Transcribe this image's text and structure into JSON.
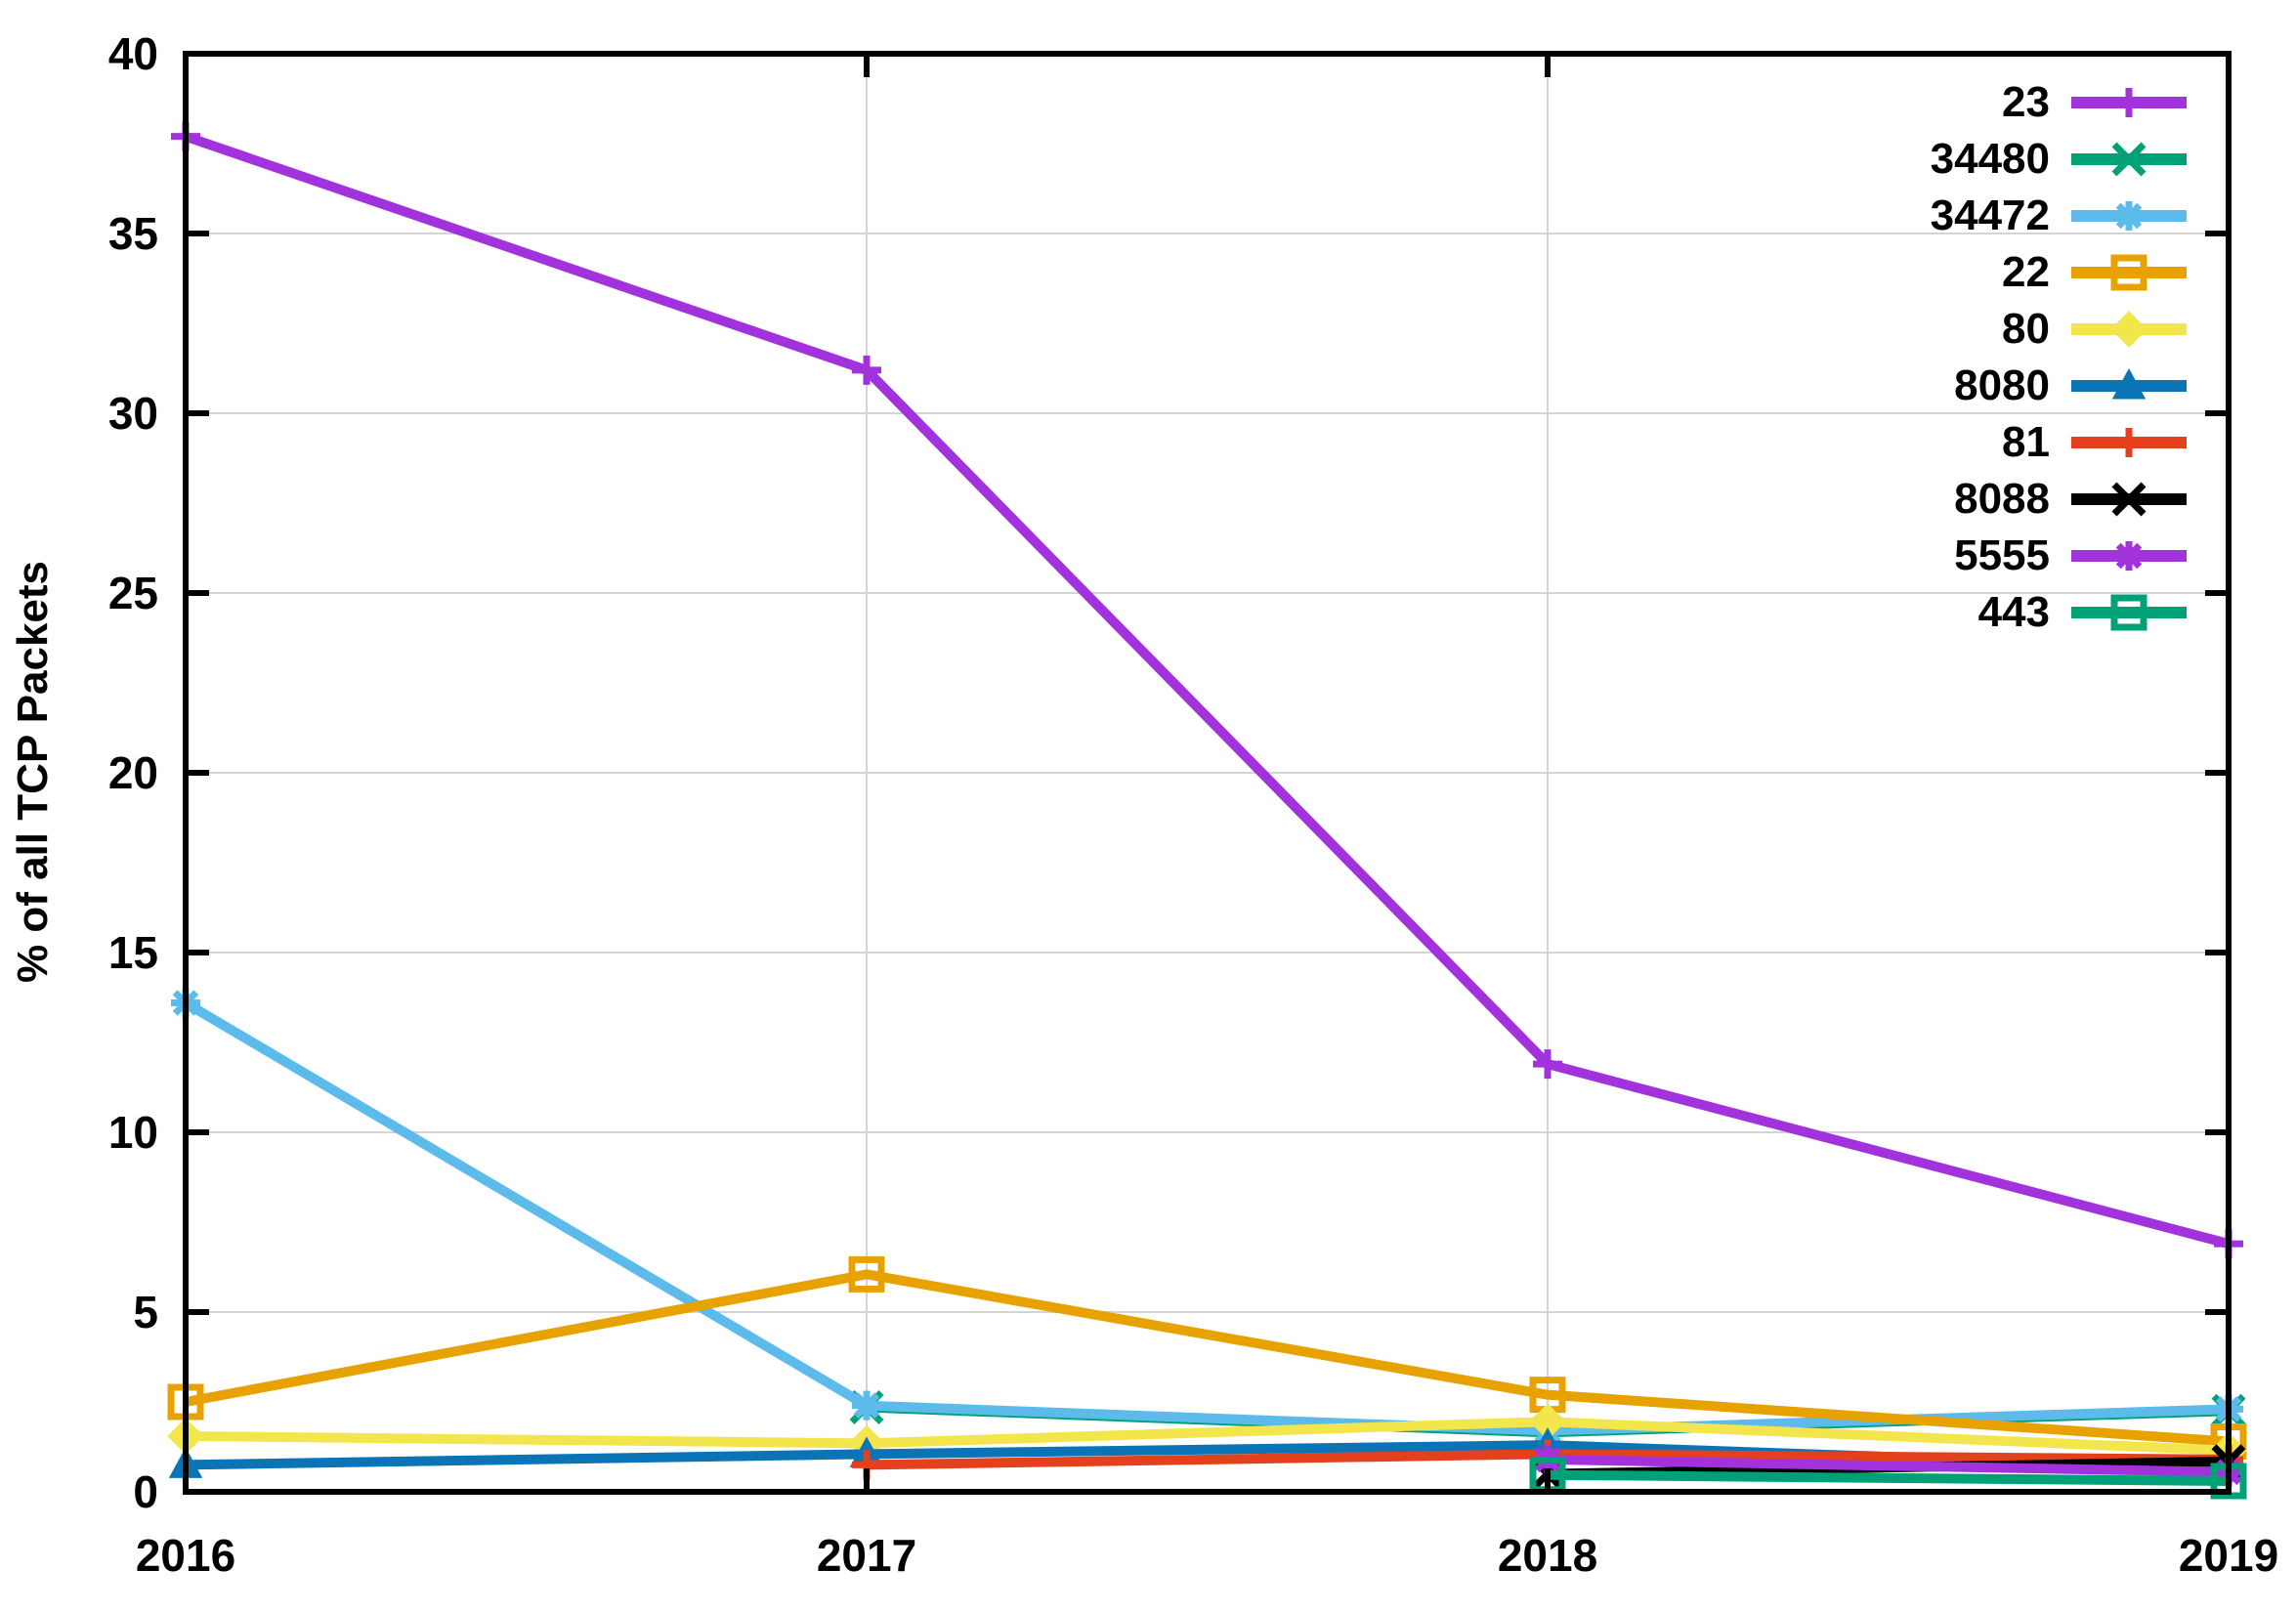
{
  "chart_data": {
    "type": "line",
    "title": "",
    "xlabel": "",
    "ylabel": "% of all TCP Packets",
    "x": [
      2016,
      2017,
      2018,
      2019
    ],
    "xtick_labels": [
      "2016",
      "2017",
      "2018",
      "2019"
    ],
    "ylim": [
      0,
      40
    ],
    "yticks": [
      0,
      5,
      10,
      15,
      20,
      25,
      30,
      35,
      40
    ],
    "grid": true,
    "legend_position": "top-right",
    "series": [
      {
        "name": "23",
        "color": "#a233dc",
        "marker": "plus",
        "values": [
          37.7,
          31.2,
          11.9,
          6.9
        ]
      },
      {
        "name": "34480",
        "color": "#00a176",
        "marker": "cross",
        "values": [
          null,
          2.35,
          1.65,
          2.25
        ]
      },
      {
        "name": "34472",
        "color": "#5cbbea",
        "marker": "asterisk",
        "values": [
          13.6,
          2.4,
          1.7,
          2.3
        ]
      },
      {
        "name": "22",
        "color": "#e8a200",
        "marker": "square-open",
        "values": [
          2.5,
          6.05,
          2.7,
          1.4
        ]
      },
      {
        "name": "80",
        "color": "#f2e64c",
        "marker": "diamond",
        "values": [
          1.55,
          1.35,
          1.95,
          1.15
        ]
      },
      {
        "name": "8080",
        "color": "#0a74b6",
        "marker": "triangle",
        "values": [
          0.75,
          1.05,
          1.3,
          0.65
        ]
      },
      {
        "name": "81",
        "color": "#e5401d",
        "marker": "plus",
        "values": [
          null,
          0.75,
          1.05,
          0.9
        ]
      },
      {
        "name": "8088",
        "color": "#000000",
        "marker": "cross",
        "values": [
          null,
          null,
          0.5,
          0.85
        ]
      },
      {
        "name": "5555",
        "color": "#a233dc",
        "marker": "asterisk",
        "values": [
          null,
          null,
          0.9,
          0.55
        ]
      },
      {
        "name": "443",
        "color": "#00a176",
        "marker": "square-open",
        "values": [
          null,
          null,
          0.47,
          0.3
        ]
      }
    ],
    "style": {
      "grid_color": "#d4d4d4",
      "border_color": "#000000",
      "line_width": 10
    }
  }
}
